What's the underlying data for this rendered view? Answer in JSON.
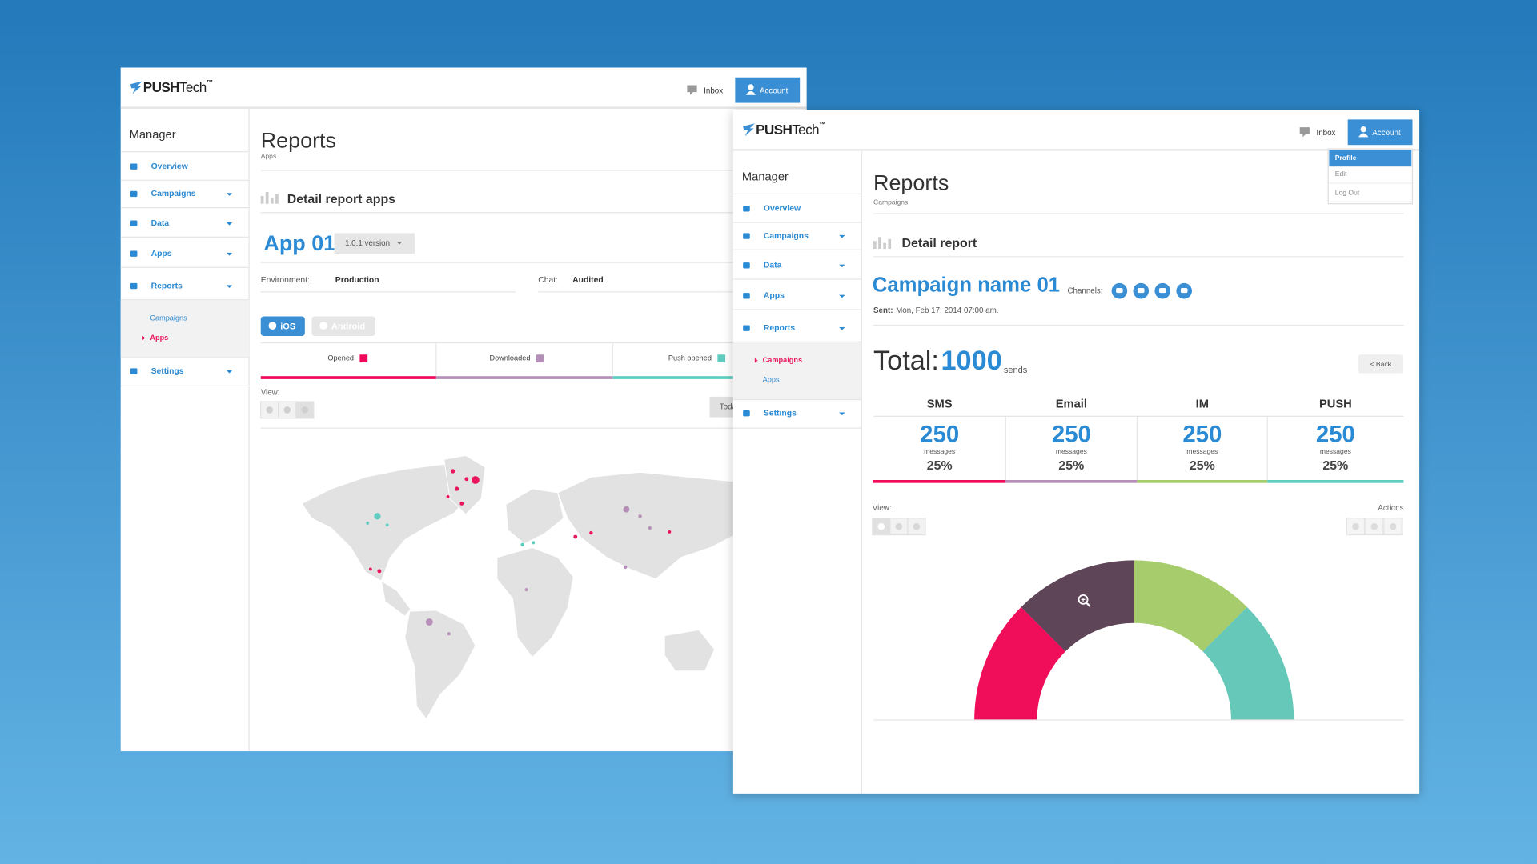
{
  "apps_window": {
    "logo": {
      "brand": "PUSH",
      "suffix": "Tech",
      "mark": "™"
    },
    "inbox": "Inbox",
    "account": "Account",
    "sidebar": {
      "title": "Manager",
      "items": [
        "Overview",
        "Campaigns",
        "Data",
        "Apps",
        "Reports",
        "Settings"
      ],
      "submenu": [
        "Campaigns",
        "Apps"
      ]
    },
    "title": "Reports",
    "subtitle": "Apps",
    "section_title": "Detail report apps",
    "app_name": "App 01",
    "version": "1.0.1 version",
    "environment_label": "Environment:",
    "environment": "Production",
    "chat_label": "Chat:",
    "chat": "Audited",
    "platforms": [
      "iOS",
      "Android"
    ],
    "tabs": [
      {
        "name": "Opened",
        "color": "#f0085a"
      },
      {
        "name": "Downloaded",
        "color": "#b58fb8"
      },
      {
        "name": "Push opened",
        "color": "#5ecdc0"
      }
    ],
    "view_label": "View:",
    "today": "Today"
  },
  "campaigns_window": {
    "logo": {
      "brand": "PUSH",
      "suffix": "Tech",
      "mark": "™"
    },
    "inbox": "Inbox",
    "account": "Account",
    "account_menu": [
      "Profile",
      "Edit",
      "Log Out"
    ],
    "sidebar": {
      "title": "Manager",
      "items": [
        "Overview",
        "Campaigns",
        "Data",
        "Apps",
        "Reports",
        "Settings"
      ],
      "submenu": [
        "Campaigns",
        "Apps"
      ]
    },
    "title": "Reports",
    "subtitle": "Campaigns",
    "section_title": "Detail report",
    "campaign_name": "Campaign name 01",
    "channels_label": "Channels:",
    "sent_label": "Sent:",
    "sent": "Mon, Feb 17, 2014 07:00 am.",
    "total_label": "Total:",
    "total": 1000,
    "total_unit": "sends",
    "back": "< Back",
    "stats": [
      {
        "name": "SMS",
        "value": 250,
        "unit": "messages",
        "percent": "25%",
        "color": "#f0085a",
        "donut_color": "#f0085a"
      },
      {
        "name": "Email",
        "value": 250,
        "unit": "messages",
        "percent": "25%",
        "color": "#b58fb8",
        "donut_color": "#5e4458"
      },
      {
        "name": "IM",
        "value": 250,
        "unit": "messages",
        "percent": "25%",
        "color": "#a6cc6c",
        "donut_color": "#a6cc6c"
      },
      {
        "name": "PUSH",
        "value": 250,
        "unit": "messages",
        "percent": "25%",
        "color": "#5ecdc0",
        "donut_color": "#65c8b8"
      }
    ],
    "view_label": "View:",
    "actions_label": "Actions"
  }
}
